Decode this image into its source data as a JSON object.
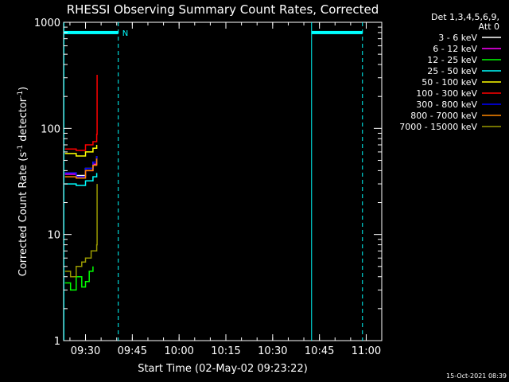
{
  "chart_data": {
    "type": "line",
    "title": "RHESSI Observing Summary Count Rates, Corrected",
    "xlabel": "Start Time (02-May-02 09:23:22)",
    "ylabel_main": "Corrected Count Rate (s",
    "ylabel_sup1": "-1",
    "ylabel_mid": " detector",
    "ylabel_sup2": "-1",
    "ylabel_end": ")",
    "yscale": "log",
    "ylim": [
      1,
      1000
    ],
    "xlim_minutes": [
      9.383,
      11.083
    ],
    "x_ticks": [
      {
        "label": "09:30",
        "t": 9.5
      },
      {
        "label": "09:45",
        "t": 9.75
      },
      {
        "label": "10:00",
        "t": 10.0
      },
      {
        "label": "10:15",
        "t": 10.25
      },
      {
        "label": "10:30",
        "t": 10.5
      },
      {
        "label": "10:45",
        "t": 10.75
      },
      {
        "label": "11:00",
        "t": 11.0
      }
    ],
    "y_ticks": [
      {
        "label": "1",
        "v": 1
      },
      {
        "label": "10",
        "v": 10
      },
      {
        "label": "100",
        "v": 100
      },
      {
        "label": "1000",
        "v": 1000
      }
    ],
    "legend_header": [
      "Det 1,3,4,5,6,9,",
      "Att 0"
    ],
    "series": [
      {
        "name": "3 - 6 keV",
        "color": "#ffffff",
        "values": [
          [
            9.39,
            38
          ],
          [
            9.45,
            36
          ],
          [
            9.5,
            42
          ],
          [
            9.54,
            48
          ],
          [
            9.56,
            55
          ]
        ]
      },
      {
        "name": "6 - 12 keV",
        "color": "#ff00ff",
        "values": [
          [
            9.39,
            37
          ],
          [
            9.45,
            35
          ],
          [
            9.5,
            40
          ],
          [
            9.54,
            46
          ],
          [
            9.56,
            52
          ]
        ]
      },
      {
        "name": "12 - 25 keV",
        "color": "#00ff00",
        "values": [
          [
            9.39,
            3.5
          ],
          [
            9.42,
            3
          ],
          [
            9.45,
            4
          ],
          [
            9.48,
            3.2
          ],
          [
            9.5,
            3.6
          ],
          [
            9.52,
            4.5
          ],
          [
            9.54,
            5
          ]
        ]
      },
      {
        "name": "25 - 50 keV",
        "color": "#00ffff",
        "values": [
          [
            9.39,
            30
          ],
          [
            9.45,
            29
          ],
          [
            9.5,
            32
          ],
          [
            9.54,
            35
          ],
          [
            9.56,
            38
          ]
        ]
      },
      {
        "name": "50 - 100 keV",
        "color": "#ffff00",
        "values": [
          [
            9.39,
            58
          ],
          [
            9.45,
            55
          ],
          [
            9.5,
            60
          ],
          [
            9.54,
            65
          ],
          [
            9.56,
            70
          ]
        ]
      },
      {
        "name": "100 - 300 keV",
        "color": "#ff0000",
        "values": [
          [
            9.39,
            64
          ],
          [
            9.45,
            62
          ],
          [
            9.5,
            70
          ],
          [
            9.54,
            75
          ],
          [
            9.56,
            88
          ],
          [
            9.562,
            320
          ]
        ]
      },
      {
        "name": "300 - 800 keV",
        "color": "#0000ff",
        "values": [
          [
            9.39,
            38
          ],
          [
            9.45,
            35
          ],
          [
            9.5,
            42
          ],
          [
            9.54,
            48
          ],
          [
            9.56,
            55
          ]
        ]
      },
      {
        "name": "800 - 7000 keV",
        "color": "#ff8800",
        "values": [
          [
            9.39,
            35
          ],
          [
            9.45,
            34
          ],
          [
            9.5,
            40
          ],
          [
            9.54,
            45
          ],
          [
            9.56,
            52
          ]
        ]
      },
      {
        "name": "7000 - 15000 keV",
        "color": "#999900",
        "values": [
          [
            9.39,
            4.5
          ],
          [
            9.42,
            4
          ],
          [
            9.45,
            5
          ],
          [
            9.48,
            5.5
          ],
          [
            9.5,
            6
          ],
          [
            9.53,
            7
          ],
          [
            9.56,
            8
          ],
          [
            9.562,
            30
          ]
        ]
      }
    ],
    "markers": {
      "n_label": "N",
      "vertical_lines": [
        {
          "t": 9.385,
          "style": "solid"
        },
        {
          "t": 9.675,
          "style": "dashed"
        },
        {
          "t": 10.708,
          "style": "solid"
        },
        {
          "t": 10.98,
          "style": "dashed"
        }
      ],
      "coverage_bars": [
        {
          "t0": 9.385,
          "t1": 9.675
        },
        {
          "t0": 10.708,
          "t1": 10.98
        }
      ],
      "color": "#00ffff"
    },
    "timestamp": "15-Oct-2021 08:39"
  }
}
